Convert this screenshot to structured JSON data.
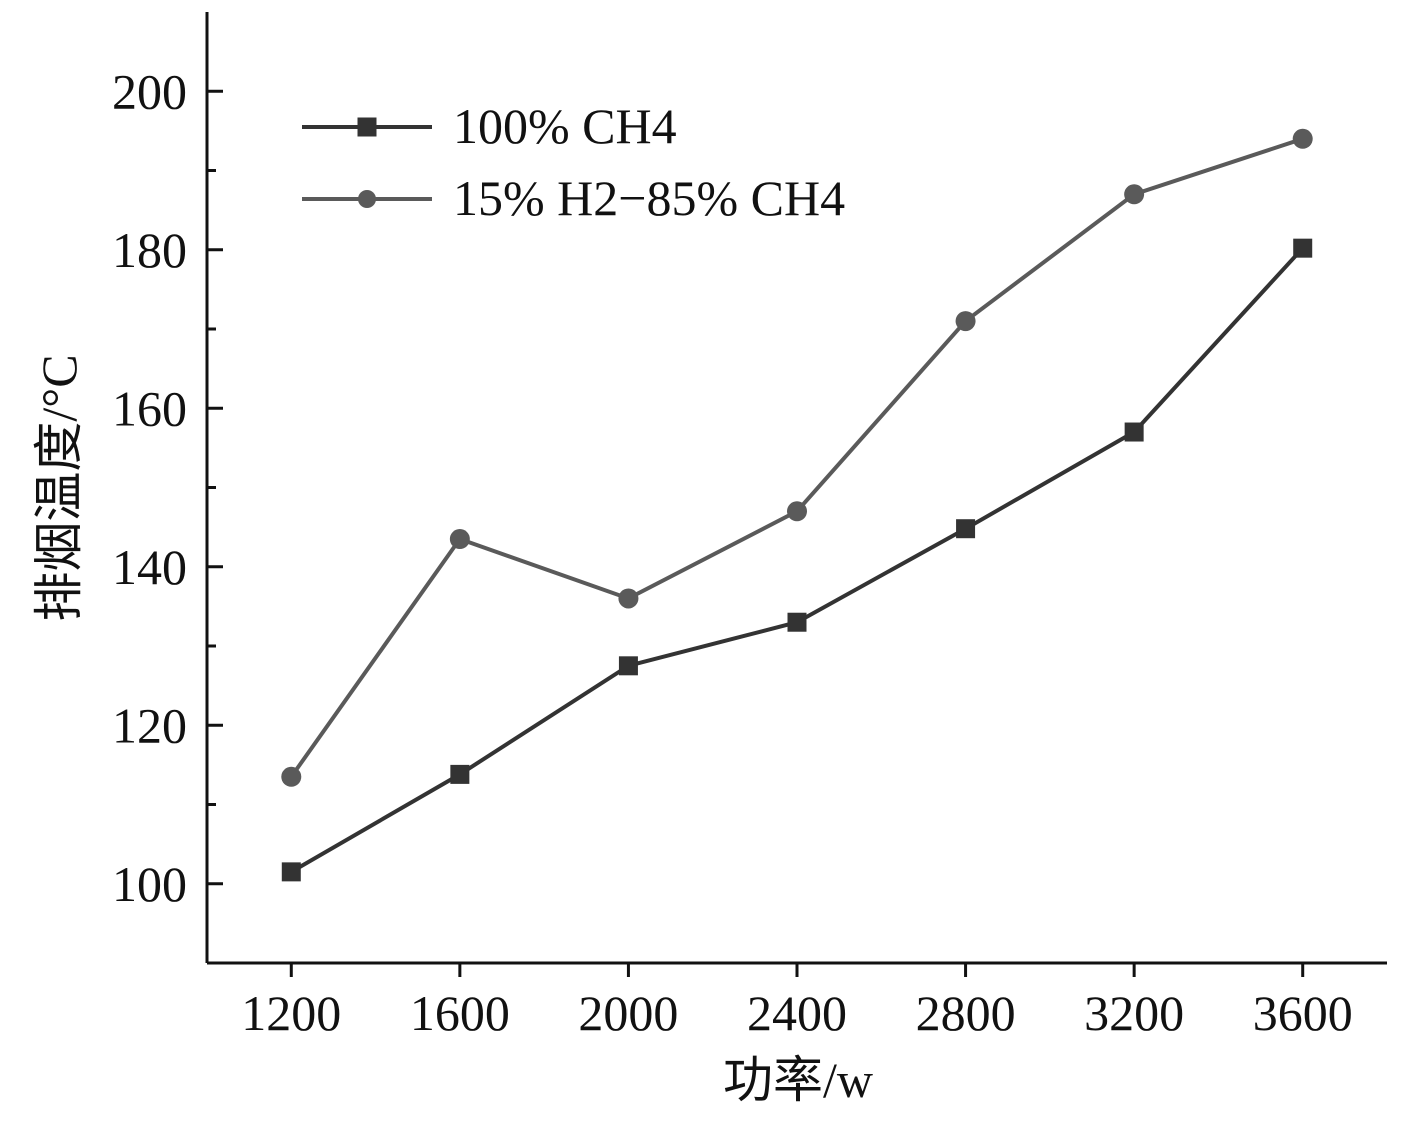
{
  "chart_data": {
    "type": "line",
    "xlabel": "功率/w",
    "ylabel": "排烟温度/°C",
    "x": [
      1200,
      1600,
      2000,
      2400,
      2800,
      3200,
      3600
    ],
    "xlim": [
      1000,
      3800
    ],
    "ylim": [
      90,
      210
    ],
    "xticks": [
      1200,
      1600,
      2000,
      2400,
      2800,
      3200,
      3600
    ],
    "yticks_labeled": [
      100,
      120,
      140,
      160,
      180,
      200
    ],
    "yticks_minor": [
      110,
      130,
      150,
      170,
      190
    ],
    "grid": false,
    "legend_position": "top-left",
    "series": [
      {
        "name": "100% CH4",
        "marker": "square",
        "color": "#333333",
        "values": [
          101.5,
          113.8,
          127.5,
          133.0,
          144.8,
          157.0,
          180.2
        ]
      },
      {
        "name": "15% H2−85% CH4",
        "marker": "circle",
        "color": "#5a5a5a",
        "values": [
          113.5,
          143.5,
          136.0,
          147.0,
          171.0,
          187.0,
          194.0
        ]
      }
    ]
  }
}
